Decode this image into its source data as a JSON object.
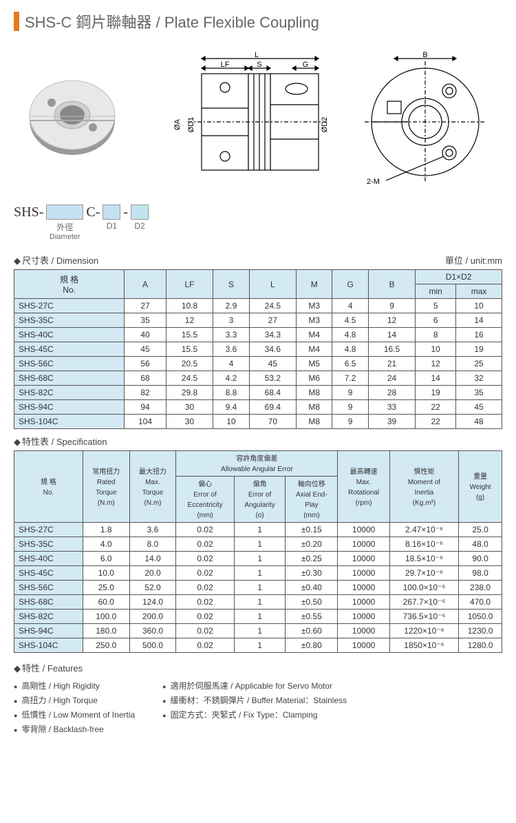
{
  "title": "SHS-C 鋼片聯軸器 / Plate Flexible Coupling",
  "partcode": {
    "prefix": "SHS-",
    "mid": "C-",
    "dash": "-",
    "sub_diameter_zh": "外徑",
    "sub_diameter_en": "Diameter",
    "sub_d1": "D1",
    "sub_d2": "D2"
  },
  "dimension": {
    "heading": "尺寸表 / Dimension",
    "unit": "單位 / unit:mm",
    "headers": {
      "no": "規 格\nNo.",
      "A": "A",
      "LF": "LF",
      "S": "S",
      "L": "L",
      "M": "M",
      "G": "G",
      "B": "B",
      "D1D2": "D1×D2",
      "min": "min",
      "max": "max"
    },
    "rows": [
      {
        "no": "SHS-27C",
        "A": "27",
        "LF": "10.8",
        "S": "2.9",
        "L": "24.5",
        "M": "M3",
        "G": "4",
        "B": "9",
        "min": "5",
        "max": "10"
      },
      {
        "no": "SHS-35C",
        "A": "35",
        "LF": "12",
        "S": "3",
        "L": "27",
        "M": "M3",
        "G": "4.5",
        "B": "12",
        "min": "6",
        "max": "14"
      },
      {
        "no": "SHS-40C",
        "A": "40",
        "LF": "15.5",
        "S": "3.3",
        "L": "34.3",
        "M": "M4",
        "G": "4.8",
        "B": "14",
        "min": "8",
        "max": "16"
      },
      {
        "no": "SHS-45C",
        "A": "45",
        "LF": "15.5",
        "S": "3.6",
        "L": "34.6",
        "M": "M4",
        "G": "4.8",
        "B": "16.5",
        "min": "10",
        "max": "19"
      },
      {
        "no": "SHS-56C",
        "A": "56",
        "LF": "20.5",
        "S": "4",
        "L": "45",
        "M": "M5",
        "G": "6.5",
        "B": "21",
        "min": "12",
        "max": "25"
      },
      {
        "no": "SHS-68C",
        "A": "68",
        "LF": "24.5",
        "S": "4.2",
        "L": "53.2",
        "M": "M6",
        "G": "7.2",
        "B": "24",
        "min": "14",
        "max": "32"
      },
      {
        "no": "SHS-82C",
        "A": "82",
        "LF": "29.8",
        "S": "8.8",
        "L": "68.4",
        "M": "M8",
        "G": "9",
        "B": "28",
        "min": "19",
        "max": "35"
      },
      {
        "no": "SHS-94C",
        "A": "94",
        "LF": "30",
        "S": "9.4",
        "L": "69.4",
        "M": "M8",
        "G": "9",
        "B": "33",
        "min": "22",
        "max": "45"
      },
      {
        "no": "SHS-104C",
        "A": "104",
        "LF": "30",
        "S": "10",
        "L": "70",
        "M": "M8",
        "G": "9",
        "B": "39",
        "min": "22",
        "max": "48"
      }
    ]
  },
  "specification": {
    "heading": "特性表 / Specification",
    "headers": {
      "no": "規 格\nNo.",
      "rated": "常用扭力\nRated\nTorque\n(N.m)",
      "max": "最大扭力\nMax.\nTorque\n(N.m)",
      "allow": "容許角度偏差\nAllowable Angular Error",
      "ecc": "偏心\nError of\nEccentricity\n(mm)",
      "ang": "偏角\nError of\nAngularity\n(o)",
      "axial": "軸向位移\nAxial End-\nPlay\n(mm)",
      "rpm": "最高轉速\nMax.\nRotational\n(rpm)",
      "inertia": "慣性矩\nMoment of\nInertia\n(Kg.m²)",
      "weight": "重量\nWeight\n(g)"
    },
    "rows": [
      {
        "no": "SHS-27C",
        "rated": "1.8",
        "max": "3.6",
        "ecc": "0.02",
        "ang": "1",
        "axial": "±0.15",
        "rpm": "10000",
        "inertia": "2.47×10⁻⁶",
        "weight": "25.0"
      },
      {
        "no": "SHS-35C",
        "rated": "4.0",
        "max": "8.0",
        "ecc": "0.02",
        "ang": "1",
        "axial": "±0.20",
        "rpm": "10000",
        "inertia": "8.16×10⁻⁶",
        "weight": "48.0"
      },
      {
        "no": "SHS-40C",
        "rated": "6.0",
        "max": "14.0",
        "ecc": "0.02",
        "ang": "1",
        "axial": "±0.25",
        "rpm": "10000",
        "inertia": "18.5×10⁻⁶",
        "weight": "90.0"
      },
      {
        "no": "SHS-45C",
        "rated": "10.0",
        "max": "20.0",
        "ecc": "0.02",
        "ang": "1",
        "axial": "±0.30",
        "rpm": "10000",
        "inertia": "29.7×10⁻⁶",
        "weight": "98.0"
      },
      {
        "no": "SHS-56C",
        "rated": "25.0",
        "max": "52.0",
        "ecc": "0.02",
        "ang": "1",
        "axial": "±0.40",
        "rpm": "10000",
        "inertia": "100.0×10⁻⁶",
        "weight": "238.0"
      },
      {
        "no": "SHS-68C",
        "rated": "60.0",
        "max": "124.0",
        "ecc": "0.02",
        "ang": "1",
        "axial": "±0.50",
        "rpm": "10000",
        "inertia": "267.7×10⁻⁶",
        "weight": "470.0"
      },
      {
        "no": "SHS-82C",
        "rated": "100.0",
        "max": "200.0",
        "ecc": "0.02",
        "ang": "1",
        "axial": "±0.55",
        "rpm": "10000",
        "inertia": "736.5×10⁻⁶",
        "weight": "1050.0"
      },
      {
        "no": "SHS-94C",
        "rated": "180.0",
        "max": "360.0",
        "ecc": "0.02",
        "ang": "1",
        "axial": "±0.60",
        "rpm": "10000",
        "inertia": "1220×10⁻⁶",
        "weight": "1230.0"
      },
      {
        "no": "SHS-104C",
        "rated": "250.0",
        "max": "500.0",
        "ecc": "0.02",
        "ang": "1",
        "axial": "±0.80",
        "rpm": "10000",
        "inertia": "1850×10⁻⁶",
        "weight": "1280.0"
      }
    ]
  },
  "features": {
    "heading": "特性 / Features",
    "left": [
      "高剛性 / High Rigidity",
      "高扭力 / High Torque",
      "低慣性 / Low Moment of Inertia",
      "零背隙 / Backlash-free"
    ],
    "right": [
      "適用於伺服馬達 / Applicable for Servo Motor",
      "緩衝材：不銹鋼彈片 / Buffer Material：Stainless",
      "固定方式：夾緊式 / Fix Type：Clamping"
    ]
  },
  "diagram_labels": {
    "L": "L",
    "LF": "LF",
    "S": "S",
    "G": "G",
    "A": "ØA",
    "D1": "ØD1",
    "D2": "ØD2",
    "B": "B",
    "TM": "2-M"
  },
  "colors": {
    "accent": "#e87a1a",
    "header_bg": "#d3e9f4",
    "border": "#555"
  }
}
